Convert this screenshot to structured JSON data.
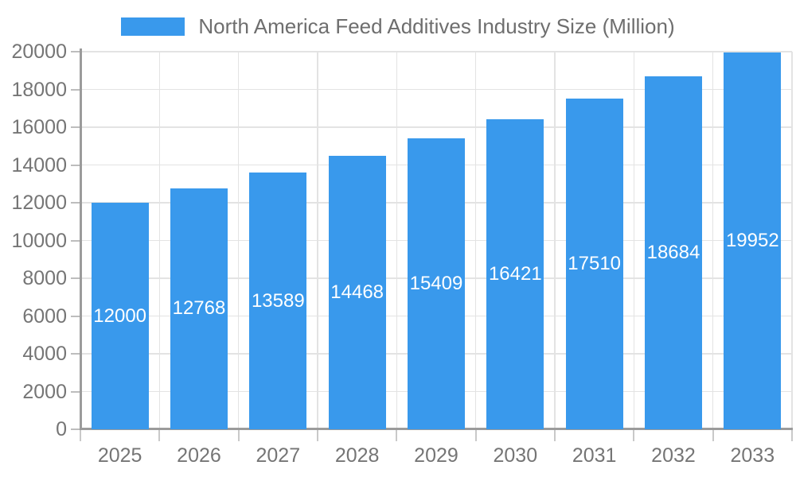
{
  "chart_data": {
    "type": "bar",
    "title": "North America Feed Additives Industry Size (Million)",
    "categories": [
      "2025",
      "2026",
      "2027",
      "2028",
      "2029",
      "2030",
      "2031",
      "2032",
      "2033"
    ],
    "values": [
      12000,
      12768,
      13589,
      14468,
      15409,
      16421,
      17510,
      18684,
      19952
    ],
    "xlabel": "",
    "ylabel": "",
    "ylim": [
      0,
      20000
    ],
    "ytick_step": 2000,
    "ytick_labels": [
      "0",
      "2000",
      "4000",
      "6000",
      "8000",
      "10000",
      "12000",
      "14000",
      "16000",
      "18000",
      "20000"
    ],
    "grid": "on",
    "legend_position": "top-center",
    "legend_entries": [
      "North America Feed Additives Industry Size (Million)"
    ],
    "colors": {
      "bar": "#3999EC",
      "bar_value_text": "#ffffff",
      "legend_text": "#6e6e6e",
      "axis_text": "#757575",
      "gridline": "#e3e3e3",
      "axis_line": "#9b9b9b",
      "background": "#ffffff"
    }
  }
}
